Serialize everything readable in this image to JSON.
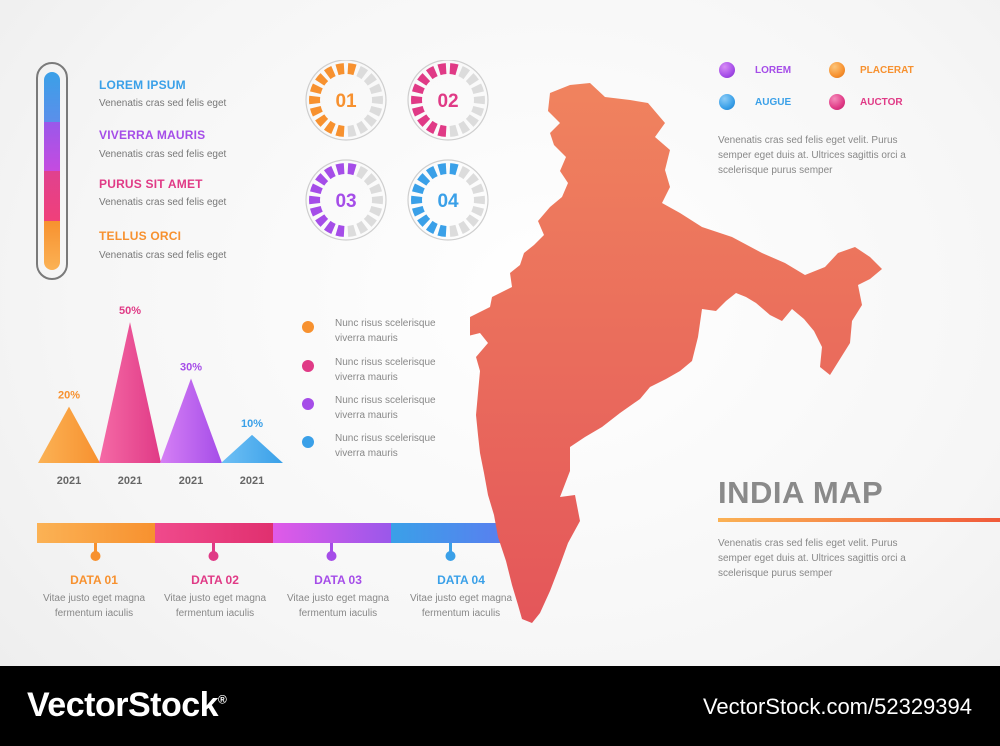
{
  "legend": {
    "items": [
      {
        "title": "LOREM IPSUM",
        "sub": "Venenatis cras sed felis eget",
        "color": "#3aa0e8"
      },
      {
        "title": "VIVERRA MAURIS",
        "sub": "Venenatis cras sed felis eget",
        "color": "#a54de8"
      },
      {
        "title": "PURUS SIT AMET",
        "sub": "Venenatis cras sed felis eget",
        "color": "#e03a86"
      },
      {
        "title": "TELLUS ORCI",
        "sub": "Venenatis cras sed felis eget",
        "color": "#f7912f"
      }
    ]
  },
  "dials": [
    {
      "label": "01",
      "color": "#f7912f"
    },
    {
      "label": "02",
      "color": "#e03a86"
    },
    {
      "label": "03",
      "color": "#a54de8"
    },
    {
      "label": "04",
      "color": "#3aa0e8"
    }
  ],
  "chart_data": {
    "type": "bar",
    "categories": [
      "2021",
      "2021",
      "2021",
      "2021"
    ],
    "values": [
      20,
      50,
      30,
      10
    ],
    "value_labels": [
      "20%",
      "50%",
      "30%",
      "10%"
    ],
    "colors": [
      "#f7912f",
      "#e03a86",
      "#a54de8",
      "#3aa0e8"
    ],
    "ylim": [
      0,
      55
    ]
  },
  "bullets": [
    {
      "text": "Nunc risus scelerisque viverra mauris",
      "color": "#f7912f"
    },
    {
      "text": "Nunc risus scelerisque viverra mauris",
      "color": "#e03a86"
    },
    {
      "text": "Nunc risus scelerisque viverra mauris",
      "color": "#a54de8"
    },
    {
      "text": "Nunc risus scelerisque viverra mauris",
      "color": "#3aa0e8"
    }
  ],
  "timeline": [
    {
      "label": "DATA 01",
      "desc": "Vitae justo eget magna fermentum iaculis",
      "color": "#f7912f"
    },
    {
      "label": "DATA 02",
      "desc": "Vitae justo eget magna fermentum iaculis",
      "color": "#e03a86"
    },
    {
      "label": "DATA 03",
      "desc": "Vitae justo eget magna fermentum iaculis",
      "color": "#a54de8"
    },
    {
      "label": "DATA 04",
      "desc": "Vitae justo eget magna fermentum iaculis",
      "color": "#3aa0e8"
    }
  ],
  "map_legend": [
    {
      "label": "LOREM",
      "color": "#a54de8"
    },
    {
      "label": "PLACERAT",
      "color": "#f7912f"
    },
    {
      "label": "AUGUE",
      "color": "#3aa0e8"
    },
    {
      "label": "AUCTOR",
      "color": "#e03a86"
    }
  ],
  "top_paragraph": "Venenatis cras sed felis eget velit. Purus semper eget duis at. Ultrices sagittis orci a scelerisque purus semper",
  "map_title": "INDIA MAP",
  "bottom_paragraph": "Venenatis cras sed felis eget velit. Purus semper eget duis at. Ultrices sagittis orci a scelerisque purus semper",
  "footer": {
    "brand": "VectorStock",
    "brand_mark": "®",
    "url": "VectorStock.com/52329394"
  }
}
